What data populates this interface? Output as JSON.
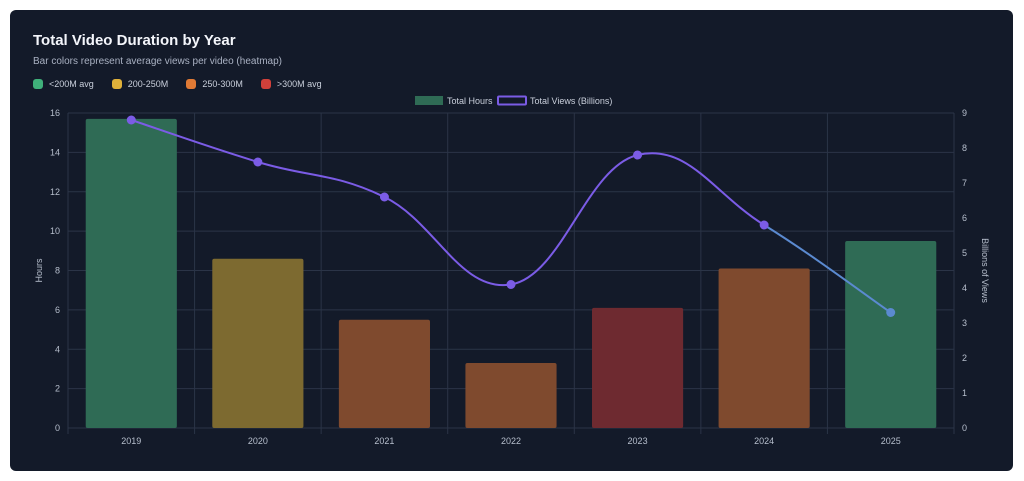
{
  "title": "Total Video Duration by Year",
  "subtitle": "Bar colors represent average views per video (heatmap)",
  "heat_legend": [
    {
      "label": "<200M avg",
      "color": "#3fb07a"
    },
    {
      "label": "200-250M",
      "color": "#e0b13a"
    },
    {
      "label": "250-300M",
      "color": "#e07a35"
    },
    {
      "label": ">300M avg",
      "color": "#d1403a"
    }
  ],
  "colors": {
    "bar_green": "#2f6b55",
    "bar_yellow": "#7d6a30",
    "bar_orange": "#7f4a2e",
    "bar_red": "#6e2a30",
    "line": "#7b5ce6",
    "line_tail": "#5b8ad0"
  },
  "chart_data": {
    "type": "bar",
    "categories": [
      "2019",
      "2020",
      "2021",
      "2022",
      "2023",
      "2024",
      "2025"
    ],
    "series": [
      {
        "name": "Total Hours",
        "type": "bar",
        "axis": "left",
        "values": [
          15.7,
          8.6,
          5.5,
          3.3,
          6.1,
          8.1,
          9.5
        ],
        "color_groups": [
          "<200M avg",
          "200-250M",
          "250-300M",
          "250-300M",
          ">300M avg",
          "250-300M",
          "<200M avg"
        ]
      },
      {
        "name": "Total Views (Billions)",
        "type": "line",
        "axis": "right",
        "values": [
          8.8,
          7.6,
          6.6,
          4.1,
          7.8,
          5.8,
          3.3
        ]
      }
    ],
    "ylabel": "Hours",
    "y2label": "Billions of Views",
    "ylim": [
      0,
      16
    ],
    "y2lim": [
      0,
      9
    ],
    "yticks": [
      "0",
      "2",
      "4",
      "6",
      "8",
      "10",
      "12",
      "14",
      "16"
    ],
    "y2ticks": [
      "0",
      "1",
      "2",
      "3",
      "4",
      "5",
      "6",
      "7",
      "8",
      "9"
    ],
    "grid": true,
    "legend_position": "top-center"
  }
}
